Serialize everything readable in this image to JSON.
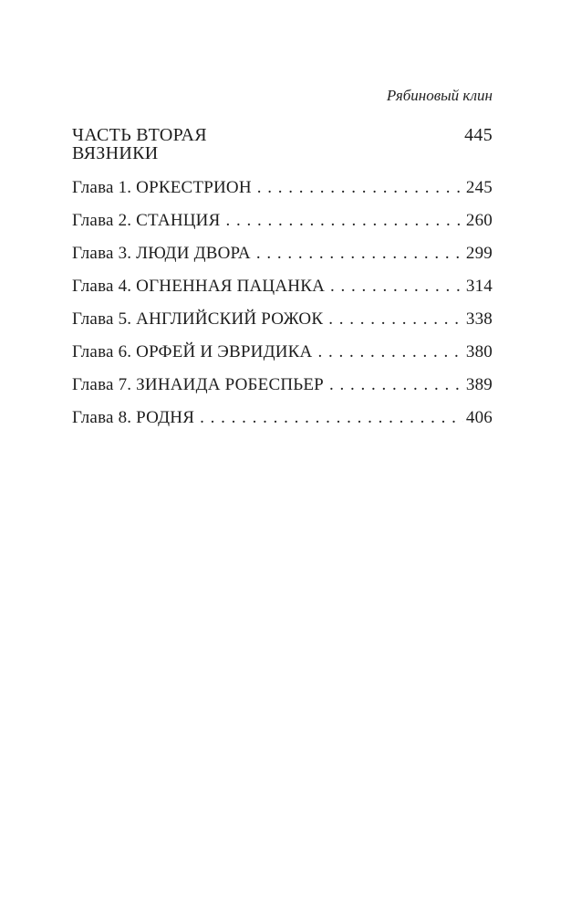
{
  "meta": {
    "background_color": "#ffffff",
    "text_color": "#1d1d1d"
  },
  "running_header": {
    "title": "Рябиновый клин"
  },
  "section": {
    "part_title": "ЧАСТЬ ВТОРАЯ",
    "part_page": "445",
    "part_subtitle": "ВЯЗНИКИ"
  },
  "toc": {
    "entries": [
      {
        "label": "Глава 1. ОРКЕСТРИОН",
        "page": "245"
      },
      {
        "label": "Глава 2. СТАНЦИЯ",
        "page": "260"
      },
      {
        "label": "Глава 3. ЛЮДИ ДВОРА",
        "page": "299"
      },
      {
        "label": "Глава 4. ОГНЕННАЯ ПАЦАНКА",
        "page": "314"
      },
      {
        "label": "Глава 5. АНГЛИЙСКИЙ РОЖОК",
        "page": "338"
      },
      {
        "label": "Глава 6. ОРФЕЙ И ЭВРИДИКА",
        "page": "380"
      },
      {
        "label": "Глава 7. ЗИНАИДА РОБЕСПЬЕР",
        "page": "389"
      },
      {
        "label": "Глава 8. РОДНЯ",
        "page": "406"
      }
    ]
  }
}
